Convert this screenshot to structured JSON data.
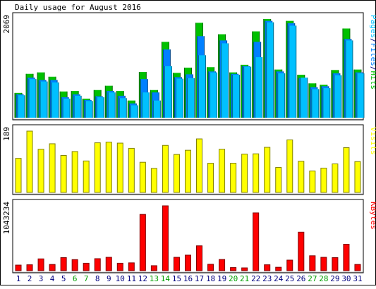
{
  "title": "Daily usage for August 2016",
  "chart_data": [
    {
      "type": "bar",
      "panel": "pages-files-hits",
      "ylabel": "2069",
      "legend": [
        "Pages",
        "/",
        "Files",
        "/",
        "Hits"
      ],
      "legend_placement": "right",
      "x": [
        "1",
        "2",
        "3",
        "4",
        "5",
        "6",
        "7",
        "8",
        "9",
        "10",
        "11",
        "12",
        "13",
        "14",
        "15",
        "16",
        "17",
        "18",
        "19",
        "20",
        "21",
        "22",
        "23",
        "24",
        "25",
        "26",
        "27",
        "28",
        "29",
        "30",
        "31"
      ],
      "ylim": [
        0,
        2069
      ],
      "series": [
        {
          "name": "Hits",
          "values": [
            520,
            920,
            950,
            860,
            550,
            560,
            400,
            580,
            670,
            560,
            360,
            960,
            580,
            1590,
            940,
            1050,
            1990,
            1060,
            1750,
            950,
            1110,
            1810,
            2069,
            1010,
            2030,
            900,
            720,
            690,
            1000,
            1870,
            1010
          ]
        },
        {
          "name": "Files",
          "values": [
            490,
            840,
            790,
            790,
            430,
            490,
            370,
            450,
            560,
            460,
            300,
            810,
            530,
            1430,
            850,
            910,
            1710,
            970,
            1620,
            920,
            1080,
            1590,
            2030,
            970,
            1980,
            830,
            640,
            660,
            930,
            1650,
            950
          ]
        },
        {
          "name": "Pages",
          "values": [
            470,
            810,
            760,
            740,
            400,
            460,
            350,
            430,
            530,
            410,
            260,
            530,
            360,
            1080,
            820,
            830,
            1310,
            950,
            1560,
            900,
            1070,
            1270,
            2000,
            930,
            1930,
            840,
            600,
            620,
            890,
            1620,
            930
          ]
        }
      ],
      "colors": {
        "Hits": "#00c000",
        "Files": "#0080ff",
        "Pages": "#00c0ff"
      }
    },
    {
      "type": "bar",
      "panel": "visits",
      "ylabel": "189",
      "legend": [
        "Visits"
      ],
      "legend_placement": "right",
      "x": [
        "1",
        "2",
        "3",
        "4",
        "5",
        "6",
        "7",
        "8",
        "9",
        "10",
        "11",
        "12",
        "13",
        "14",
        "15",
        "16",
        "17",
        "18",
        "19",
        "20",
        "21",
        "22",
        "23",
        "24",
        "25",
        "26",
        "27",
        "28",
        "29",
        "30",
        "31"
      ],
      "ylim": [
        0,
        189
      ],
      "series": [
        {
          "name": "Visits",
          "values": [
            105,
            189,
            133,
            150,
            114,
            126,
            97,
            153,
            155,
            152,
            136,
            93,
            74,
            145,
            117,
            130,
            165,
            90,
            133,
            90,
            118,
            119,
            139,
            77,
            162,
            96,
            66,
            75,
            88,
            138,
            95
          ]
        }
      ],
      "colors": {
        "Visits": "#ffff00"
      }
    },
    {
      "type": "bar",
      "panel": "kbytes",
      "ylabel": "1043234",
      "legend": [
        "KBytes"
      ],
      "legend_placement": "right",
      "x": [
        "1",
        "2",
        "3",
        "4",
        "5",
        "6",
        "7",
        "8",
        "9",
        "10",
        "11",
        "12",
        "13",
        "14",
        "15",
        "16",
        "17",
        "18",
        "19",
        "20",
        "21",
        "22",
        "23",
        "24",
        "25",
        "26",
        "27",
        "28",
        "29",
        "30",
        "31"
      ],
      "ylim": [
        0,
        1043234
      ],
      "series": [
        {
          "name": "KBytes",
          "values": [
            90000,
            95000,
            190000,
            100000,
            210000,
            178000,
            120000,
            193000,
            215000,
            120000,
            126000,
            905000,
            80000,
            1043234,
            215000,
            250000,
            400000,
            103000,
            180000,
            50000,
            45000,
            930000,
            95000,
            55000,
            170000,
            620000,
            240000,
            215000,
            210000,
            425000,
            100000
          ]
        }
      ],
      "colors": {
        "KBytes": "#ff0000"
      }
    }
  ],
  "x_labels": [
    {
      "text": "1",
      "color": "#000080"
    },
    {
      "text": "2",
      "color": "#000080"
    },
    {
      "text": "3",
      "color": "#000080"
    },
    {
      "text": "4",
      "color": "#000080"
    },
    {
      "text": "5",
      "color": "#000080"
    },
    {
      "text": "6",
      "color": "#00a000"
    },
    {
      "text": "7",
      "color": "#00a000"
    },
    {
      "text": "8",
      "color": "#000080"
    },
    {
      "text": "9",
      "color": "#000080"
    },
    {
      "text": "10",
      "color": "#000080"
    },
    {
      "text": "11",
      "color": "#000080"
    },
    {
      "text": "12",
      "color": "#000080"
    },
    {
      "text": "13",
      "color": "#00a000"
    },
    {
      "text": "14",
      "color": "#00a000"
    },
    {
      "text": "15",
      "color": "#000080"
    },
    {
      "text": "16",
      "color": "#000080"
    },
    {
      "text": "17",
      "color": "#000080"
    },
    {
      "text": "18",
      "color": "#000080"
    },
    {
      "text": "19",
      "color": "#000080"
    },
    {
      "text": "20",
      "color": "#00a000"
    },
    {
      "text": "21",
      "color": "#00a000"
    },
    {
      "text": "22",
      "color": "#000080"
    },
    {
      "text": "23",
      "color": "#000080"
    },
    {
      "text": "24",
      "color": "#000080"
    },
    {
      "text": "25",
      "color": "#000080"
    },
    {
      "text": "26",
      "color": "#000080"
    },
    {
      "text": "27",
      "color": "#00a000"
    },
    {
      "text": "28",
      "color": "#00a000"
    },
    {
      "text": "29",
      "color": "#000080"
    },
    {
      "text": "30",
      "color": "#000080"
    },
    {
      "text": "31",
      "color": "#000080"
    }
  ],
  "legend_colors": {
    "Pages": "#00c0ff",
    "/": "#000080",
    "Files": "#0080ff",
    "Hits": "#00c000",
    "Visits": "#ffff00",
    "KBytes": "#ff0000"
  }
}
